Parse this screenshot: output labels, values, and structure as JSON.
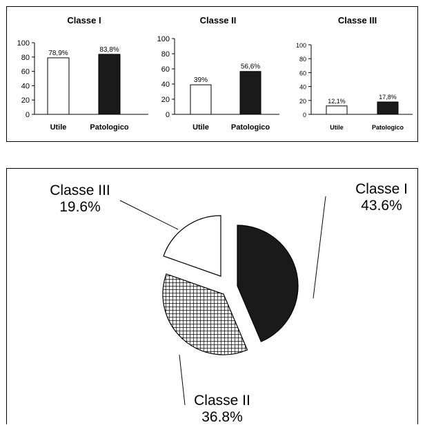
{
  "chart_data": [
    {
      "type": "bar",
      "title": "Classe I",
      "categories": [
        "Utile",
        "Patologico"
      ],
      "values": [
        78.9,
        83.8
      ],
      "value_labels": [
        "78,9%",
        "83,8%"
      ],
      "ylim": [
        0,
        100
      ],
      "yticks": [
        "0",
        "20",
        "40",
        "60",
        "80",
        "100"
      ],
      "bar_colors": [
        "#ffffff",
        "#1a1a1a"
      ],
      "grid": false
    },
    {
      "type": "bar",
      "title": "Classe II",
      "categories": [
        "Utile",
        "Patologico"
      ],
      "values": [
        39,
        56.6
      ],
      "value_labels": [
        "39%",
        "56,6%"
      ],
      "ylim": [
        0,
        100
      ],
      "yticks": [
        "0",
        "20",
        "40",
        "60",
        "80",
        "100"
      ],
      "bar_colors": [
        "#ffffff",
        "#1a1a1a"
      ],
      "grid": false
    },
    {
      "type": "bar",
      "title": "Classe III",
      "categories": [
        "Utile",
        "Patologico"
      ],
      "values": [
        12.1,
        17.8
      ],
      "value_labels": [
        "12,1%",
        "17,8%"
      ],
      "ylim": [
        0,
        100
      ],
      "yticks": [
        "0",
        "20",
        "40",
        "60",
        "80",
        "100"
      ],
      "bar_colors": [
        "#ffffff",
        "#1a1a1a"
      ],
      "grid": false
    },
    {
      "type": "pie",
      "labels": [
        "Classe I",
        "Classe II",
        "Classe III"
      ],
      "values": [
        43.6,
        36.8,
        19.6
      ],
      "value_labels": [
        "43.6%",
        "36.8%",
        "19.6%"
      ],
      "slice_fills": [
        "solid-black",
        "crosshatch",
        "white"
      ],
      "exploded": true
    }
  ]
}
